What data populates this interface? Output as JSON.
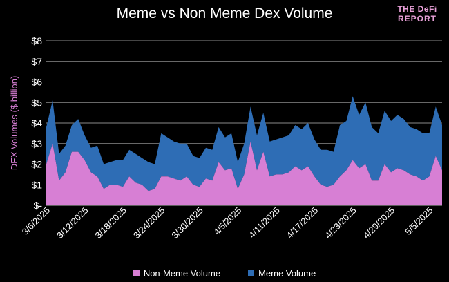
{
  "chart_data": {
    "type": "area",
    "stacked": true,
    "title": "Meme vs Non Meme Dex Volume",
    "ylabel": "DEX Volumes ($ billion)",
    "xlabel": "",
    "ylim": [
      0,
      8
    ],
    "y_tick_labels": [
      "$-",
      "$1",
      "$2",
      "$3",
      "$4",
      "$5",
      "$6",
      "$7",
      "$8"
    ],
    "x_tick_labels": [
      "3/6/2025",
      "3/12/2025",
      "3/18/2025",
      "3/24/2025",
      "3/30/2025",
      "4/5/2025",
      "4/11/2025",
      "4/17/2025",
      "4/23/2025",
      "4/29/2025",
      "5/5/2025"
    ],
    "grid": true,
    "legend_position": "bottom",
    "x_start": "2025-03-06",
    "series": [
      {
        "name": "Non-Meme Volume",
        "color": "#d77fd4",
        "values": [
          2.0,
          3.0,
          1.2,
          1.6,
          2.6,
          2.6,
          2.2,
          1.6,
          1.4,
          0.8,
          1.0,
          1.0,
          0.9,
          1.4,
          1.1,
          1.0,
          0.7,
          0.8,
          1.4,
          1.4,
          1.3,
          1.2,
          1.4,
          1.0,
          0.9,
          1.3,
          1.2,
          2.1,
          1.7,
          1.8,
          0.8,
          1.5,
          3.1,
          1.7,
          2.6,
          1.4,
          1.5,
          1.5,
          1.6,
          1.9,
          1.7,
          1.9,
          1.4,
          1.0,
          0.9,
          1.0,
          1.4,
          1.7,
          2.2,
          1.8,
          2.0,
          1.2,
          1.2,
          2.0,
          1.6,
          1.8,
          1.7,
          1.5,
          1.4,
          1.2,
          1.4,
          2.4,
          1.7
        ]
      },
      {
        "name": "Meme Volume",
        "color": "#2e6db5",
        "values": [
          1.8,
          2.1,
          1.3,
          1.3,
          1.3,
          1.6,
          1.2,
          1.2,
          1.5,
          1.2,
          1.1,
          1.2,
          1.3,
          1.3,
          1.4,
          1.3,
          1.4,
          1.2,
          2.1,
          1.9,
          1.8,
          1.8,
          1.6,
          1.4,
          1.4,
          1.5,
          1.5,
          1.7,
          1.6,
          1.7,
          1.3,
          1.5,
          1.7,
          1.7,
          1.9,
          1.7,
          1.7,
          1.8,
          1.8,
          2.0,
          2.0,
          2.1,
          1.8,
          1.7,
          1.8,
          1.6,
          2.5,
          2.4,
          3.1,
          2.6,
          3.0,
          2.6,
          2.3,
          2.6,
          2.5,
          2.6,
          2.5,
          2.3,
          2.3,
          2.3,
          2.1,
          2.4,
          2.2
        ]
      }
    ]
  },
  "logo": {
    "line1": "THE DeFi",
    "line2": "REPORT"
  }
}
